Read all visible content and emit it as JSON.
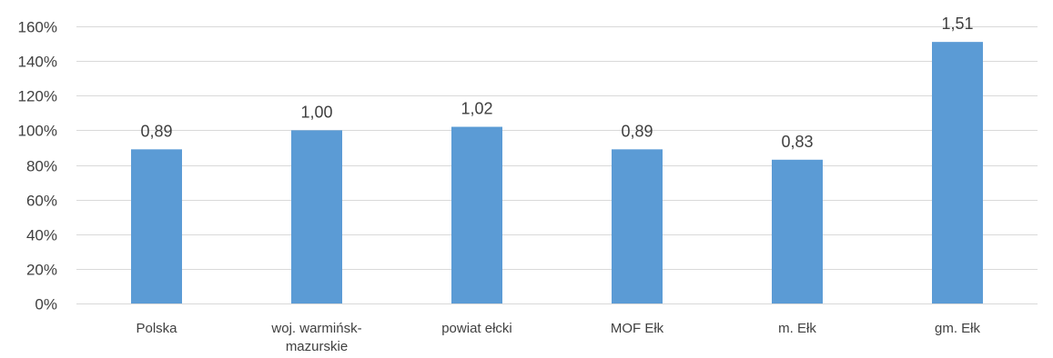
{
  "chart_data": {
    "type": "bar",
    "categories": [
      [
        "Polska"
      ],
      [
        "woj. warmińsk-",
        "mazurskie"
      ],
      [
        "powiat ełcki"
      ],
      [
        "MOF Ełk"
      ],
      [
        "m. Ełk"
      ],
      [
        "gm. Ełk"
      ]
    ],
    "values": [
      0.89,
      1.0,
      1.02,
      0.89,
      0.83,
      1.51
    ],
    "data_labels": [
      "0,89",
      "1,00",
      "1,02",
      "0,89",
      "0,83",
      "1,51"
    ],
    "y_ticks": [
      {
        "value": 0,
        "label": "0%"
      },
      {
        "value": 0.2,
        "label": "20%"
      },
      {
        "value": 0.4,
        "label": "40%"
      },
      {
        "value": 0.6,
        "label": "60%"
      },
      {
        "value": 0.8,
        "label": "80%"
      },
      {
        "value": 1.0,
        "label": "100%"
      },
      {
        "value": 1.2,
        "label": "120%"
      },
      {
        "value": 1.4,
        "label": "140%"
      },
      {
        "value": 1.6,
        "label": "160%"
      }
    ],
    "ylim": [
      0,
      1.6
    ],
    "grid": true,
    "bar_color": "#5b9bd5",
    "title": "",
    "xlabel": "",
    "ylabel": ""
  }
}
